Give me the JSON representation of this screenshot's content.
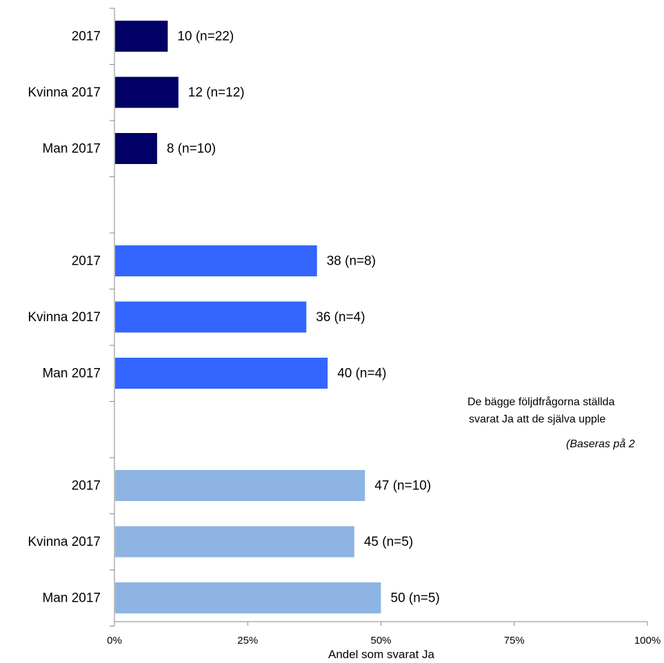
{
  "chart_data": {
    "type": "bar",
    "orientation": "horizontal",
    "xlabel": "Andel som svarat Ja",
    "xlim": [
      0,
      100
    ],
    "xticks": [
      "0%",
      "25%",
      "50%",
      "75%",
      "100%"
    ],
    "grid": false,
    "groups": [
      {
        "color": "#000066",
        "bars": [
          {
            "category": "2017",
            "value": 10,
            "label": "10 (n=22)"
          },
          {
            "category": "Kvinna 2017",
            "value": 12,
            "label": "12 (n=12)"
          },
          {
            "category": "Man 2017",
            "value": 8,
            "label": "8 (n=10)"
          }
        ]
      },
      {
        "color": "#3366FF",
        "bars": [
          {
            "category": "2017",
            "value": 38,
            "label": "38 (n=8)"
          },
          {
            "category": "Kvinna 2017",
            "value": 36,
            "label": "36 (n=4)"
          },
          {
            "category": "Man 2017",
            "value": 40,
            "label": "40 (n=4)"
          }
        ]
      },
      {
        "color": "#8EB4E3",
        "bars": [
          {
            "category": "2017",
            "value": 47,
            "label": "47 (n=10)"
          },
          {
            "category": "Kvinna 2017",
            "value": 45,
            "label": "45 (n=5)"
          },
          {
            "category": "Man 2017",
            "value": 50,
            "label": "50 (n=5)"
          }
        ]
      }
    ]
  },
  "annotation": {
    "line1": "De bägge följdfrågorna ställda",
    "line2": "svarat Ja att de själva upple",
    "line3": "(Baseras på 2"
  }
}
